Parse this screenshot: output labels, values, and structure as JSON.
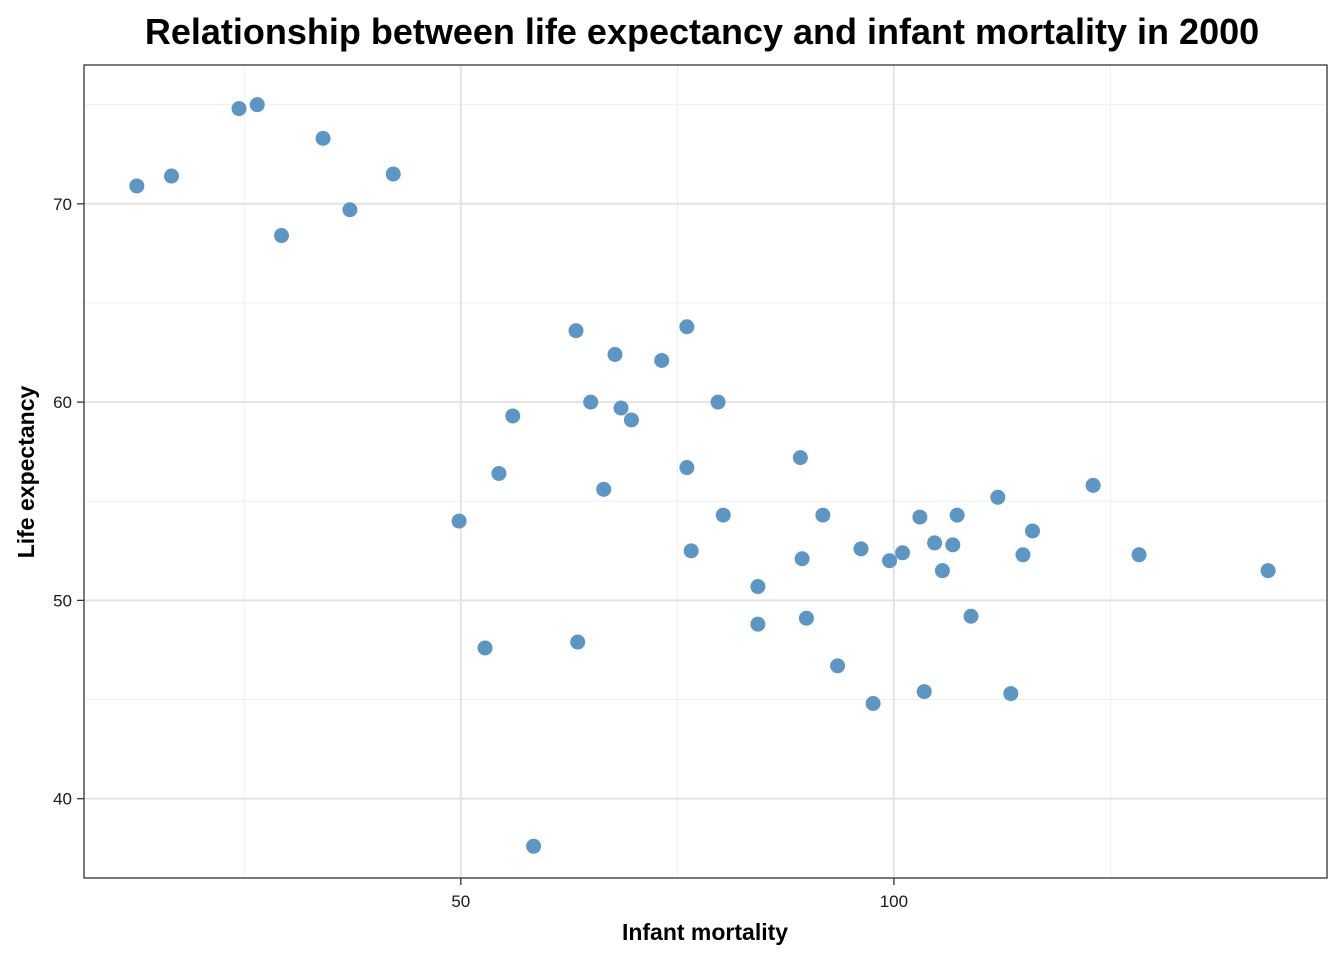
{
  "chart_data": {
    "type": "scatter",
    "title": "Relationship between life expectancy and infant mortality in 2000",
    "xlabel": "Infant mortality",
    "ylabel": "Life expectancy",
    "xlim": [
      6.5,
      150
    ],
    "ylim": [
      36,
      77
    ],
    "x_ticks": [
      50,
      100
    ],
    "y_ticks": [
      40,
      50,
      60,
      70
    ],
    "grid": true,
    "point_color": "#5b96c4",
    "points": [
      {
        "x": 12.6,
        "y": 70.9
      },
      {
        "x": 16.6,
        "y": 71.4
      },
      {
        "x": 24.4,
        "y": 74.8
      },
      {
        "x": 26.5,
        "y": 75.0
      },
      {
        "x": 29.3,
        "y": 68.4
      },
      {
        "x": 34.1,
        "y": 73.3
      },
      {
        "x": 37.2,
        "y": 69.7
      },
      {
        "x": 42.2,
        "y": 71.5
      },
      {
        "x": 49.8,
        "y": 54.0
      },
      {
        "x": 52.8,
        "y": 47.6
      },
      {
        "x": 54.4,
        "y": 56.4
      },
      {
        "x": 56.0,
        "y": 59.3
      },
      {
        "x": 58.4,
        "y": 37.6
      },
      {
        "x": 63.3,
        "y": 63.6
      },
      {
        "x": 63.5,
        "y": 47.9
      },
      {
        "x": 65.0,
        "y": 60.0
      },
      {
        "x": 66.5,
        "y": 55.6
      },
      {
        "x": 67.8,
        "y": 62.4
      },
      {
        "x": 68.5,
        "y": 59.7
      },
      {
        "x": 69.7,
        "y": 59.1
      },
      {
        "x": 73.2,
        "y": 62.1
      },
      {
        "x": 76.1,
        "y": 63.8
      },
      {
        "x": 76.1,
        "y": 56.7
      },
      {
        "x": 76.6,
        "y": 52.5
      },
      {
        "x": 79.7,
        "y": 60.0
      },
      {
        "x": 80.3,
        "y": 54.3
      },
      {
        "x": 84.3,
        "y": 50.7
      },
      {
        "x": 84.3,
        "y": 48.8
      },
      {
        "x": 89.2,
        "y": 57.2
      },
      {
        "x": 89.4,
        "y": 52.1
      },
      {
        "x": 89.9,
        "y": 49.1
      },
      {
        "x": 91.8,
        "y": 54.3
      },
      {
        "x": 93.5,
        "y": 46.7
      },
      {
        "x": 96.2,
        "y": 52.6
      },
      {
        "x": 97.6,
        "y": 44.8
      },
      {
        "x": 99.5,
        "y": 52.0
      },
      {
        "x": 101.0,
        "y": 52.4
      },
      {
        "x": 103.0,
        "y": 54.2
      },
      {
        "x": 103.5,
        "y": 45.4
      },
      {
        "x": 104.7,
        "y": 52.9
      },
      {
        "x": 105.6,
        "y": 51.5
      },
      {
        "x": 106.8,
        "y": 52.8
      },
      {
        "x": 107.3,
        "y": 54.3
      },
      {
        "x": 108.9,
        "y": 49.2
      },
      {
        "x": 112.0,
        "y": 55.2
      },
      {
        "x": 113.5,
        "y": 45.3
      },
      {
        "x": 114.9,
        "y": 52.3
      },
      {
        "x": 116.0,
        "y": 53.5
      },
      {
        "x": 123.0,
        "y": 55.8
      },
      {
        "x": 128.3,
        "y": 52.3
      },
      {
        "x": 143.2,
        "y": 51.5
      }
    ]
  }
}
